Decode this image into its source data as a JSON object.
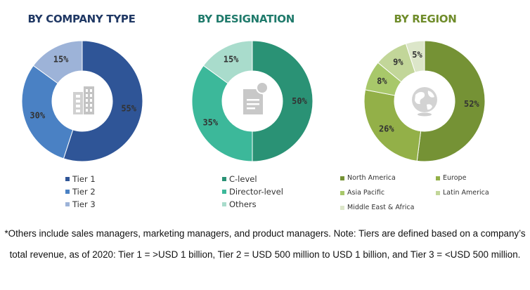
{
  "chart_data": [
    {
      "type": "pie",
      "title": "BY COMPANY TYPE",
      "title_color": "#203864",
      "center_icon": "building-icon",
      "slices": [
        {
          "label": "Tier 1",
          "value": 55,
          "display": "55%",
          "color": "#2F5597"
        },
        {
          "label": "Tier 2",
          "value": 30,
          "display": "30%",
          "color": "#4A81C4"
        },
        {
          "label": "Tier 3",
          "value": 15,
          "display": "15%",
          "color": "#9DB3D8"
        }
      ]
    },
    {
      "type": "pie",
      "title": "BY DESIGNATION",
      "title_color": "#1F7A6B",
      "center_icon": "document-icon",
      "slices": [
        {
          "label": "C-level",
          "value": 50,
          "display": "50%",
          "color": "#2A9275"
        },
        {
          "label": "Director-level",
          "value": 35,
          "display": "35%",
          "color": "#3CB89A"
        },
        {
          "label": "Others",
          "value": 15,
          "display": "15%",
          "color": "#A9DCCC"
        }
      ]
    },
    {
      "type": "pie",
      "title": "BY REGION",
      "title_color": "#6F8C2A",
      "center_icon": "globe-icon",
      "slices": [
        {
          "label": "North America",
          "value": 52,
          "display": "52%",
          "color": "#759235"
        },
        {
          "label": "Europe",
          "value": 26,
          "display": "26%",
          "color": "#93B048"
        },
        {
          "label": "Asia Pacific",
          "value": 8,
          "display": "8%",
          "color": "#A8C86A"
        },
        {
          "label": "Latin America",
          "value": 9,
          "display": "9%",
          "color": "#C2D699"
        },
        {
          "label": "Middle East & Africa",
          "value": 5,
          "display": "5%",
          "color": "#DCE6C9"
        }
      ],
      "wedge_order": [
        0,
        1,
        2,
        3,
        4
      ]
    }
  ],
  "footnote": "*Others include sales managers, marketing managers, and product managers. Note: Tiers are defined based on a company’s total revenue, as of 2020: Tier 1 = >USD 1 billion, Tier 2 = USD 500 million to USD 1 billion, and Tier 3 = <USD 500 million."
}
